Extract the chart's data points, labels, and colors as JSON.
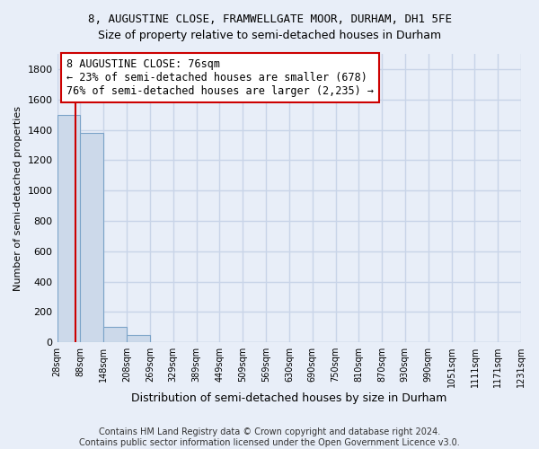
{
  "title_line1": "8, AUGUSTINE CLOSE, FRAMWELLGATE MOOR, DURHAM, DH1 5FE",
  "title_line2": "Size of property relative to semi-detached houses in Durham",
  "xlabel": "Distribution of semi-detached houses by size in Durham",
  "ylabel": "Number of semi-detached properties",
  "bin_edges": [
    28,
    88,
    148,
    208,
    269,
    329,
    389,
    449,
    509,
    569,
    630,
    690,
    750,
    810,
    870,
    930,
    990,
    1051,
    1111,
    1171,
    1231
  ],
  "bar_heights": [
    1500,
    1380,
    100,
    50,
    2,
    1,
    0,
    0,
    0,
    0,
    0,
    0,
    0,
    0,
    0,
    0,
    0,
    0,
    0,
    0
  ],
  "bar_color": "#ccd9ea",
  "bar_edgecolor": "#7ba3c8",
  "property_size": 76,
  "vline_color": "#cc0000",
  "annotation_text": "8 AUGUSTINE CLOSE: 76sqm\n← 23% of semi-detached houses are smaller (678)\n76% of semi-detached houses are larger (2,235) →",
  "annotation_boxcolor": "white",
  "annotation_edgecolor": "#cc0000",
  "ylim": [
    0,
    1900
  ],
  "yticks": [
    0,
    200,
    400,
    600,
    800,
    1000,
    1200,
    1400,
    1600,
    1800
  ],
  "background_color": "#e8eef8",
  "grid_color": "#c8d4e8",
  "footer_text": "Contains HM Land Registry data © Crown copyright and database right 2024.\nContains public sector information licensed under the Open Government Licence v3.0.",
  "title_fontsize": 9,
  "subtitle_fontsize": 9,
  "annotation_fontsize": 8.5,
  "footer_fontsize": 7,
  "ylabel_fontsize": 8,
  "xlabel_fontsize": 9
}
